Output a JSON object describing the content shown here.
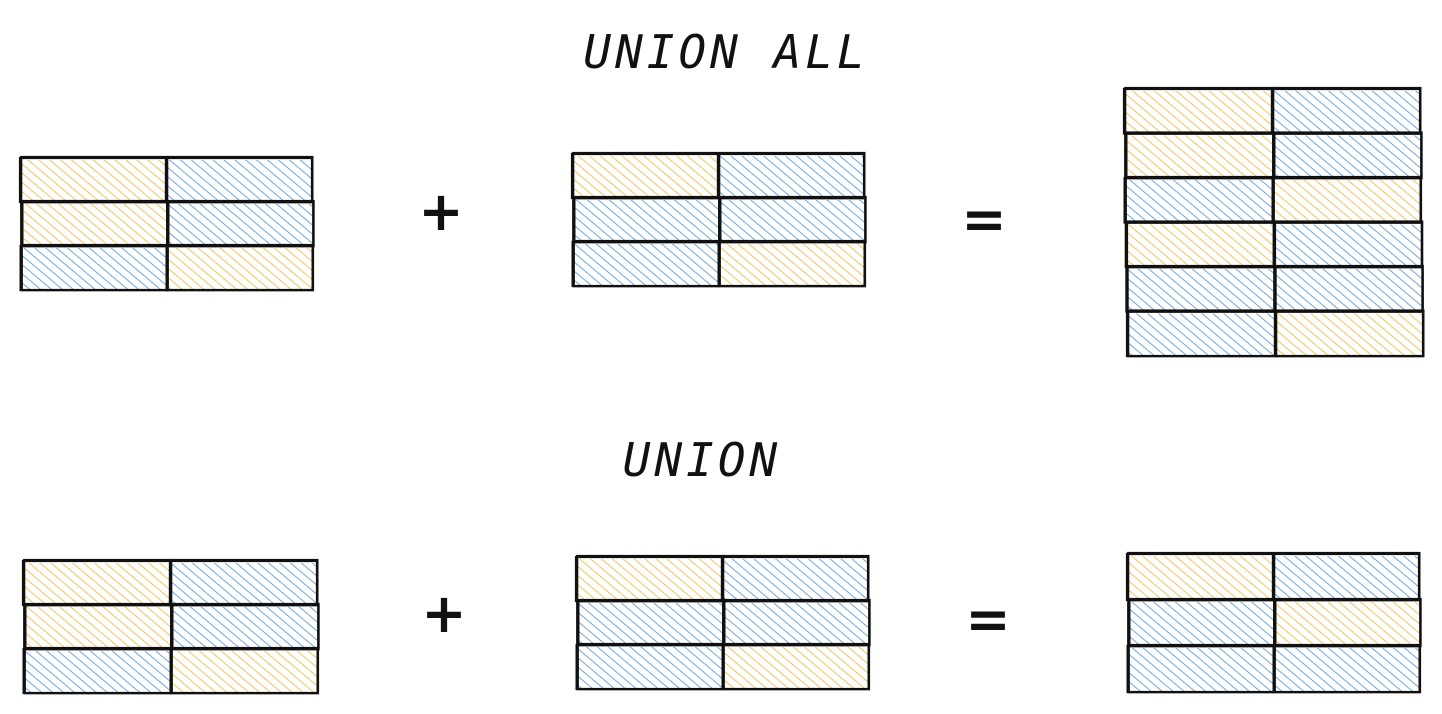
{
  "colors": {
    "yellow": "#f2b632",
    "blue": "#4a90d9",
    "stroke": "#111111",
    "background": "#ffffff"
  },
  "sections": [
    {
      "title": "UNION ALL",
      "plus": "+",
      "equals": "=",
      "left_table": [
        [
          "yellow",
          "blue"
        ],
        [
          "yellow",
          "blue"
        ],
        [
          "blue",
          "yellow"
        ]
      ],
      "right_table": [
        [
          "yellow",
          "blue"
        ],
        [
          "blue",
          "blue"
        ],
        [
          "blue",
          "yellow"
        ]
      ],
      "result_table": [
        [
          "yellow",
          "blue"
        ],
        [
          "yellow",
          "blue"
        ],
        [
          "blue",
          "yellow"
        ],
        [
          "yellow",
          "blue"
        ],
        [
          "blue",
          "blue"
        ],
        [
          "blue",
          "yellow"
        ]
      ]
    },
    {
      "title": "UNION",
      "plus": "+",
      "equals": "=",
      "left_table": [
        [
          "yellow",
          "blue"
        ],
        [
          "yellow",
          "blue"
        ],
        [
          "blue",
          "yellow"
        ]
      ],
      "right_table": [
        [
          "yellow",
          "blue"
        ],
        [
          "blue",
          "blue"
        ],
        [
          "blue",
          "yellow"
        ]
      ],
      "result_table": [
        [
          "yellow",
          "blue"
        ],
        [
          "blue",
          "yellow"
        ],
        [
          "blue",
          "blue"
        ]
      ]
    }
  ]
}
